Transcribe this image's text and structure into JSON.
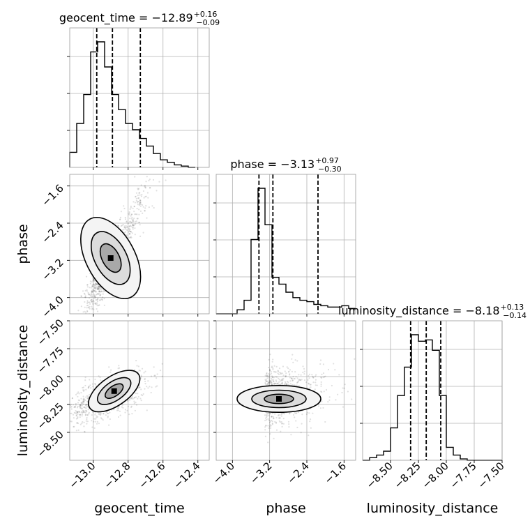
{
  "chart_data": {
    "type": "corner",
    "parameters": [
      "geocent_time",
      "phase",
      "luminosity_distance"
    ],
    "titles": [
      {
        "name": "geocent_time",
        "median": "−12.89",
        "plus": "+0.16",
        "minus": "−0.09"
      },
      {
        "name": "phase",
        "median": "−3.13",
        "plus": "+0.97",
        "minus": "−0.30"
      },
      {
        "name": "luminosity_distance",
        "median": "−8.18",
        "plus": "+0.13",
        "minus": "−0.14"
      }
    ],
    "ranges": {
      "geocent_time": [
        -13.135,
        -12.335
      ],
      "phase": [
        -4.35,
        -1.35
      ],
      "luminosity_distance": [
        -8.75,
        -7.5
      ]
    },
    "ticks": {
      "geocent_time": [
        {
          "v": -13.0,
          "label": "−13.0"
        },
        {
          "v": -12.8,
          "label": "−12.8"
        },
        {
          "v": -12.6,
          "label": "−12.6"
        },
        {
          "v": -12.4,
          "label": "−12.4"
        }
      ],
      "phase": [
        {
          "v": -4.0,
          "label": "−4.0"
        },
        {
          "v": -3.2,
          "label": "−3.2"
        },
        {
          "v": -2.4,
          "label": "−2.4"
        },
        {
          "v": -1.6,
          "label": "−1.6"
        }
      ],
      "luminosity_distance": [
        {
          "v": -8.5,
          "label": "−8.50"
        },
        {
          "v": -8.25,
          "label": "−8.25"
        },
        {
          "v": -8.0,
          "label": "−8.00"
        },
        {
          "v": -7.75,
          "label": "−7.75"
        },
        {
          "v": -7.5,
          "label": "−7.50"
        }
      ]
    },
    "quantiles": {
      "geocent_time": [
        -12.98,
        -12.89,
        -12.73
      ],
      "phase": [
        -3.43,
        -3.13,
        -2.16
      ],
      "luminosity_distance": [
        -8.32,
        -8.18,
        -8.05
      ]
    },
    "histograms": {
      "geocent_time": {
        "edges": [
          -13.135,
          -13.095,
          -13.055,
          -13.015,
          -12.975,
          -12.935,
          -12.895,
          -12.855,
          -12.815,
          -12.775,
          -12.735,
          -12.695,
          -12.655,
          -12.615,
          -12.575,
          -12.535,
          -12.495,
          -12.455,
          -12.415
        ],
        "counts": [
          0.12,
          0.35,
          0.58,
          0.92,
          1.0,
          0.8,
          0.58,
          0.46,
          0.35,
          0.3,
          0.23,
          0.17,
          0.11,
          0.06,
          0.04,
          0.02,
          0.01,
          0.0
        ]
      },
      "phase": {
        "edges": [
          -4.35,
          -4.2,
          -4.05,
          -3.9,
          -3.75,
          -3.6,
          -3.45,
          -3.3,
          -3.15,
          -3.0,
          -2.85,
          -2.7,
          -2.55,
          -2.4,
          -2.25,
          -2.1,
          -1.95,
          -1.8,
          -1.65,
          -1.5,
          -1.35
        ],
        "counts": [
          0.0,
          0.0,
          0.0,
          0.03,
          0.1,
          0.55,
          0.93,
          0.66,
          0.27,
          0.22,
          0.16,
          0.12,
          0.1,
          0.09,
          0.07,
          0.06,
          0.05,
          0.05,
          0.06,
          0.04
        ]
      },
      "luminosity_distance": {
        "edges": [
          -8.75,
          -8.6875,
          -8.625,
          -8.5625,
          -8.5,
          -8.4375,
          -8.375,
          -8.3125,
          -8.25,
          -8.1875,
          -8.125,
          -8.0625,
          -8.0,
          -7.9375,
          -7.875,
          -7.8125,
          -7.75,
          -7.6875,
          -7.625,
          -7.5625,
          -7.5
        ],
        "counts": [
          0.0,
          0.02,
          0.04,
          0.07,
          0.25,
          0.5,
          0.72,
          0.97,
          0.92,
          0.93,
          0.85,
          0.5,
          0.1,
          0.04,
          0.01,
          0.0,
          0.0,
          0.0,
          0.0,
          0.0
        ]
      }
    },
    "grid": true
  }
}
